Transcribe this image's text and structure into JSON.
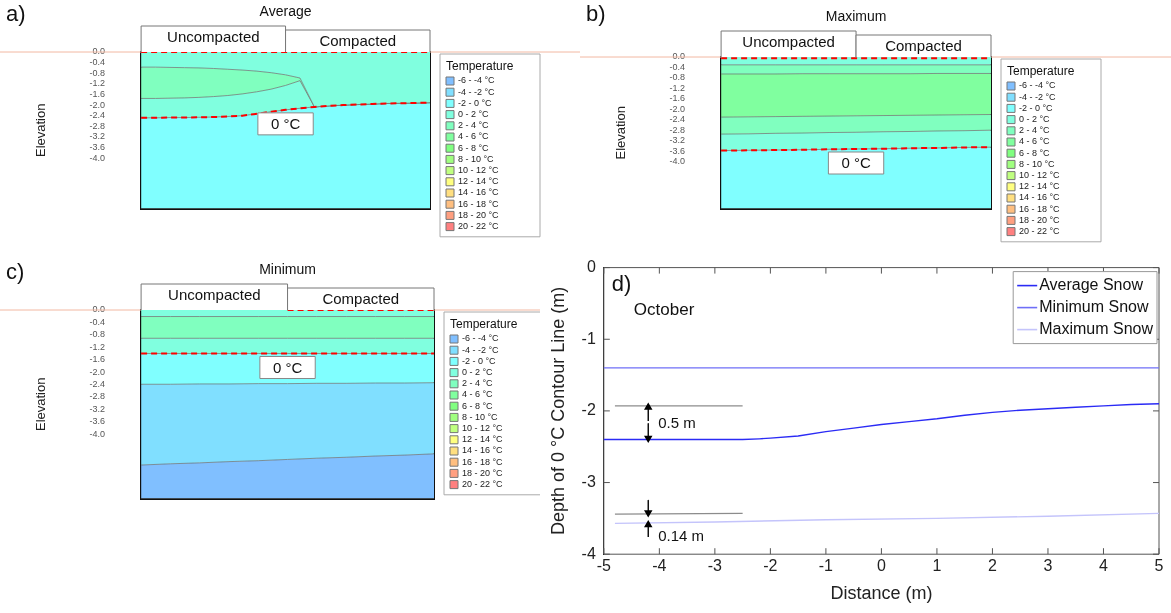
{
  "chart_data": [
    {
      "type": "area",
      "stacked": true,
      "title": "Average",
      "ylabel": "Elevation",
      "categories": [
        null,
        null,
        null,
        null,
        null,
        null,
        null,
        null,
        null,
        null,
        null,
        null,
        null,
        null,
        null,
        null,
        null,
        null,
        null,
        null,
        null
      ],
      "ylim": [
        -5.9,
        0
      ],
      "yticks": [
        {
          "value": 0,
          "label": "0.0"
        },
        {
          "value": -0.4,
          "label": "-0.4"
        },
        {
          "value": -0.8,
          "label": "-0.8"
        },
        {
          "value": -1.2,
          "label": "-1.2"
        },
        {
          "value": -1.6,
          "label": "-1.6"
        },
        {
          "value": -2,
          "label": "-2.0"
        },
        {
          "value": -2.4,
          "label": "-2.4"
        },
        {
          "value": -2.8,
          "label": "-2.8"
        },
        {
          "value": -3.2,
          "label": "-3.2"
        },
        {
          "value": -3.6,
          "label": "-3.6"
        },
        {
          "value": -4,
          "label": "-4.0"
        }
      ],
      "tick_labels": "y",
      "grid": false,
      "legend": "right",
      "legend_title": "Temperature",
      "annotations": [
        "a)",
        "Uncompacted",
        "Compacted"
      ],
      "ref_lines": [
        {
          "axis": "y",
          "value": 0,
          "color": "#f2b8a2"
        }
      ],
      "series": [
        {
          "color": "#80ffdf",
          "values": [
            -0.57,
            -0.57,
            -0.58,
            -0.59,
            -0.6,
            -0.62,
            -0.65,
            -0.68,
            -0.72,
            -0.78,
            -0.86,
            -0.98,
            -2.07,
            -2.03,
            -2.0,
            -1.98,
            -1.96,
            -1.94,
            -1.93,
            -1.92,
            -1.91
          ]
        },
        {
          "color": "#80ffbf",
          "values": [
            -1.18,
            -1.18,
            -1.16,
            -1.14,
            -1.11,
            -1.06,
            -0.99,
            -0.9,
            -0.78,
            -0.62,
            -0.4,
            -0.1,
            0,
            0,
            0,
            0,
            0,
            0,
            0,
            0,
            0
          ]
        },
        {
          "color": "#80ffdf",
          "values": [
            -0.73,
            -0.73,
            -0.73,
            -0.74,
            -0.75,
            -0.77,
            -0.79,
            -0.82,
            -0.83,
            -0.85,
            -0.92,
            -1.04,
            0,
            0,
            0,
            0,
            0,
            0,
            0,
            0,
            0
          ]
        },
        {
          "color": "#80ffff",
          "values": [
            -3.42,
            -3.42,
            -3.43,
            -3.43,
            -3.44,
            -3.45,
            -3.47,
            -3.5,
            -3.57,
            -3.65,
            -3.72,
            -3.78,
            -3.83,
            -3.87,
            -3.9,
            -3.92,
            -3.94,
            -3.96,
            -3.97,
            -3.98,
            -3.99
          ]
        },
        {
          "type": "line",
          "name": "0 °C",
          "color": "#ff0000",
          "line_style": "dashed",
          "values": [
            -2.48,
            -2.48,
            -2.47,
            -2.47,
            -2.46,
            -2.45,
            -2.43,
            -2.4,
            -2.33,
            -2.25,
            -2.18,
            -2.12,
            -2.07,
            -2.03,
            -2.0,
            -1.98,
            -1.96,
            -1.94,
            -1.93,
            -1.92,
            -1.91
          ]
        },
        {
          "type": "line",
          "color": "#ff0000",
          "line_style": "dashed",
          "values": [
            0,
            0,
            0,
            0,
            0,
            0,
            0,
            0,
            0,
            0,
            0,
            0,
            0,
            0,
            0,
            0,
            0,
            0,
            0,
            0,
            0
          ]
        },
        {
          "name": "-6 - -4 °C",
          "color": "#80bfff",
          "values": [
            null,
            null,
            null,
            null,
            null,
            null,
            null,
            null,
            null,
            null,
            null,
            null,
            null,
            null,
            null,
            null,
            null,
            null,
            null,
            null,
            null
          ]
        },
        {
          "name": "-4 - -2 °C",
          "color": "#80dfff",
          "values": [
            null,
            null,
            null,
            null,
            null,
            null,
            null,
            null,
            null,
            null,
            null,
            null,
            null,
            null,
            null,
            null,
            null,
            null,
            null,
            null,
            null
          ]
        },
        {
          "name": "-2 - 0 °C",
          "color": "#80ffff",
          "values": [
            null,
            null,
            null,
            null,
            null,
            null,
            null,
            null,
            null,
            null,
            null,
            null,
            null,
            null,
            null,
            null,
            null,
            null,
            null,
            null,
            null
          ]
        },
        {
          "name": "0 - 2 °C",
          "color": "#80ffdf",
          "values": [
            null,
            null,
            null,
            null,
            null,
            null,
            null,
            null,
            null,
            null,
            null,
            null,
            null,
            null,
            null,
            null,
            null,
            null,
            null,
            null,
            null
          ]
        },
        {
          "name": "2 - 4 °C",
          "color": "#80ffbf",
          "values": [
            null,
            null,
            null,
            null,
            null,
            null,
            null,
            null,
            null,
            null,
            null,
            null,
            null,
            null,
            null,
            null,
            null,
            null,
            null,
            null,
            null
          ]
        },
        {
          "name": "4 - 6 °C",
          "color": "#80ff9f",
          "values": [
            null,
            null,
            null,
            null,
            null,
            null,
            null,
            null,
            null,
            null,
            null,
            null,
            null,
            null,
            null,
            null,
            null,
            null,
            null,
            null,
            null
          ]
        },
        {
          "name": "6 - 8 °C",
          "color": "#80ff80",
          "values": [
            null,
            null,
            null,
            null,
            null,
            null,
            null,
            null,
            null,
            null,
            null,
            null,
            null,
            null,
            null,
            null,
            null,
            null,
            null,
            null,
            null
          ]
        },
        {
          "name": "8 - 10 °C",
          "color": "#a0ff80",
          "values": [
            null,
            null,
            null,
            null,
            null,
            null,
            null,
            null,
            null,
            null,
            null,
            null,
            null,
            null,
            null,
            null,
            null,
            null,
            null,
            null,
            null
          ]
        },
        {
          "name": "10 - 12 °C",
          "color": "#c0ff80",
          "values": [
            null,
            null,
            null,
            null,
            null,
            null,
            null,
            null,
            null,
            null,
            null,
            null,
            null,
            null,
            null,
            null,
            null,
            null,
            null,
            null,
            null
          ]
        },
        {
          "name": "12 - 14 °C",
          "color": "#ffff80",
          "values": [
            null,
            null,
            null,
            null,
            null,
            null,
            null,
            null,
            null,
            null,
            null,
            null,
            null,
            null,
            null,
            null,
            null,
            null,
            null,
            null,
            null
          ]
        },
        {
          "name": "14 - 16 °C",
          "color": "#ffdf80",
          "values": [
            null,
            null,
            null,
            null,
            null,
            null,
            null,
            null,
            null,
            null,
            null,
            null,
            null,
            null,
            null,
            null,
            null,
            null,
            null,
            null,
            null
          ]
        },
        {
          "name": "16 - 18 °C",
          "color": "#ffbf80",
          "values": [
            null,
            null,
            null,
            null,
            null,
            null,
            null,
            null,
            null,
            null,
            null,
            null,
            null,
            null,
            null,
            null,
            null,
            null,
            null,
            null,
            null
          ]
        },
        {
          "name": "18 - 20 °C",
          "color": "#ff9f80",
          "values": [
            null,
            null,
            null,
            null,
            null,
            null,
            null,
            null,
            null,
            null,
            null,
            null,
            null,
            null,
            null,
            null,
            null,
            null,
            null,
            null,
            null
          ]
        },
        {
          "name": "20 - 22 °C",
          "color": "#ff8080",
          "values": [
            null,
            null,
            null,
            null,
            null,
            null,
            null,
            null,
            null,
            null,
            null,
            null,
            null,
            null,
            null,
            null,
            null,
            null,
            null,
            null,
            null
          ]
        }
      ]
    },
    {
      "type": "area",
      "stacked": true,
      "title": "Maximum",
      "ylabel": "Elevation",
      "categories": [
        null,
        null,
        null,
        null,
        null,
        null,
        null,
        null,
        null,
        null,
        null
      ],
      "ylim": [
        -5.8,
        0
      ],
      "yticks": [
        {
          "value": 0,
          "label": "0.0"
        },
        {
          "value": -0.4,
          "label": "-0.4"
        },
        {
          "value": -0.8,
          "label": "-0.8"
        },
        {
          "value": -1.2,
          "label": "-1.2"
        },
        {
          "value": -1.6,
          "label": "-1.6"
        },
        {
          "value": -2,
          "label": "-2.0"
        },
        {
          "value": -2.4,
          "label": "-2.4"
        },
        {
          "value": -2.8,
          "label": "-2.8"
        },
        {
          "value": -3.2,
          "label": "-3.2"
        },
        {
          "value": -3.6,
          "label": "-3.6"
        },
        {
          "value": -4,
          "label": "-4.0"
        }
      ],
      "tick_labels": "y",
      "grid": false,
      "legend": "right",
      "legend_title": "Temperature",
      "annotations": [
        "b)",
        "Uncompacted",
        "Compacted"
      ],
      "ref_lines": [
        {
          "axis": "y",
          "value": 0,
          "color": "#f2b8a2"
        }
      ],
      "series": [
        {
          "color": "#80ffdf",
          "values": [
            -0.3,
            -0.3,
            -0.3,
            -0.3,
            -0.3,
            -0.3,
            -0.3,
            -0.3,
            -0.3,
            -0.3,
            -0.3
          ]
        },
        {
          "color": "#80ffbf",
          "values": [
            -0.35,
            -0.35,
            -0.35,
            -0.34,
            -0.34,
            -0.34,
            -0.34,
            -0.34,
            -0.33,
            -0.33,
            -0.33
          ]
        },
        {
          "color": "#80ff9f",
          "values": [
            -1.65,
            -1.64,
            -1.63,
            -1.63,
            -1.62,
            -1.61,
            -1.6,
            -1.59,
            -1.59,
            -1.58,
            -1.57
          ]
        },
        {
          "color": "#80ffbf",
          "values": [
            -0.65,
            -0.65,
            -0.64,
            -0.64,
            -0.63,
            -0.63,
            -0.62,
            -0.62,
            -0.61,
            -0.61,
            -0.6
          ]
        },
        {
          "color": "#80ffdf",
          "values": [
            -0.63,
            -0.63,
            -0.64,
            -0.64,
            -0.64,
            -0.64,
            -0.65,
            -0.64,
            -0.65,
            -0.64,
            -0.65
          ]
        },
        {
          "color": "#80ffff",
          "values": [
            -2.22,
            -2.23,
            -2.24,
            -2.25,
            -2.27,
            -2.28,
            -2.29,
            -2.31,
            -2.32,
            -2.34,
            -2.35
          ]
        },
        {
          "type": "line",
          "name": "0 °C",
          "color": "#ff0000",
          "line_style": "dashed",
          "values": [
            -3.58,
            -3.57,
            -3.56,
            -3.55,
            -3.53,
            -3.52,
            -3.51,
            -3.49,
            -3.48,
            -3.46,
            -3.45
          ]
        },
        {
          "type": "line",
          "color": "#ff0000",
          "line_style": "dashed",
          "values": [
            -0.05,
            -0.05,
            -0.05,
            -0.05,
            -0.05,
            -0.05,
            -0.05,
            -0.05,
            -0.05,
            -0.05,
            -0.05
          ]
        },
        {
          "name": "-6 - -4 °C",
          "color": "#80bfff",
          "values": [
            null,
            null,
            null,
            null,
            null,
            null,
            null,
            null,
            null,
            null,
            null
          ]
        },
        {
          "name": "-4 - -2 °C",
          "color": "#80dfff",
          "values": [
            null,
            null,
            null,
            null,
            null,
            null,
            null,
            null,
            null,
            null,
            null
          ]
        },
        {
          "name": "-2 - 0 °C",
          "color": "#80ffff",
          "values": [
            null,
            null,
            null,
            null,
            null,
            null,
            null,
            null,
            null,
            null,
            null
          ]
        },
        {
          "name": "0 - 2 °C",
          "color": "#80ffdf",
          "values": [
            null,
            null,
            null,
            null,
            null,
            null,
            null,
            null,
            null,
            null,
            null
          ]
        },
        {
          "name": "2 - 4 °C",
          "color": "#80ffbf",
          "values": [
            null,
            null,
            null,
            null,
            null,
            null,
            null,
            null,
            null,
            null,
            null
          ]
        },
        {
          "name": "4 - 6 °C",
          "color": "#80ff9f",
          "values": [
            null,
            null,
            null,
            null,
            null,
            null,
            null,
            null,
            null,
            null,
            null
          ]
        },
        {
          "name": "6 - 8 °C",
          "color": "#80ff80",
          "values": [
            null,
            null,
            null,
            null,
            null,
            null,
            null,
            null,
            null,
            null,
            null
          ]
        },
        {
          "name": "8 - 10 °C",
          "color": "#a0ff80",
          "values": [
            null,
            null,
            null,
            null,
            null,
            null,
            null,
            null,
            null,
            null,
            null
          ]
        },
        {
          "name": "10 - 12 °C",
          "color": "#c0ff80",
          "values": [
            null,
            null,
            null,
            null,
            null,
            null,
            null,
            null,
            null,
            null,
            null
          ]
        },
        {
          "name": "12 - 14 °C",
          "color": "#ffff80",
          "values": [
            null,
            null,
            null,
            null,
            null,
            null,
            null,
            null,
            null,
            null,
            null
          ]
        },
        {
          "name": "14 - 16 °C",
          "color": "#ffdf80",
          "values": [
            null,
            null,
            null,
            null,
            null,
            null,
            null,
            null,
            null,
            null,
            null
          ]
        },
        {
          "name": "16 - 18 °C",
          "color": "#ffbf80",
          "values": [
            null,
            null,
            null,
            null,
            null,
            null,
            null,
            null,
            null,
            null,
            null
          ]
        },
        {
          "name": "18 - 20 °C",
          "color": "#ff9f80",
          "values": [
            null,
            null,
            null,
            null,
            null,
            null,
            null,
            null,
            null,
            null,
            null
          ]
        },
        {
          "name": "20 - 22 °C",
          "color": "#ff8080",
          "values": [
            null,
            null,
            null,
            null,
            null,
            null,
            null,
            null,
            null,
            null,
            null
          ]
        }
      ]
    },
    {
      "type": "area",
      "stacked": true,
      "title": "Minimum",
      "ylabel": "Elevation",
      "categories": [
        null,
        null,
        null,
        null,
        null,
        null,
        null,
        null,
        null,
        null,
        null
      ],
      "ylim": [
        -6.07,
        0
      ],
      "yticks": [
        {
          "value": 0,
          "label": "0.0"
        },
        {
          "value": -0.4,
          "label": "-0.4"
        },
        {
          "value": -0.8,
          "label": "-0.8"
        },
        {
          "value": -1.2,
          "label": "-1.2"
        },
        {
          "value": -1.6,
          "label": "-1.6"
        },
        {
          "value": -2,
          "label": "-2.0"
        },
        {
          "value": -2.4,
          "label": "-2.4"
        },
        {
          "value": -2.8,
          "label": "-2.8"
        },
        {
          "value": -3.2,
          "label": "-3.2"
        },
        {
          "value": -3.6,
          "label": "-3.6"
        },
        {
          "value": -4,
          "label": "-4.0"
        }
      ],
      "tick_labels": "y",
      "grid": false,
      "legend": "right",
      "legend_title": "Temperature",
      "annotations": [
        "c)",
        "Uncompacted",
        "Compacted"
      ],
      "ref_lines": [
        {
          "axis": "y",
          "value": 0,
          "color": "#f2b8a2"
        }
      ],
      "series": [
        {
          "color": "#80ffdf",
          "values": [
            -0.21,
            -0.21,
            -0.21,
            -0.21,
            -0.21,
            -0.21,
            -0.21,
            -0.21,
            -0.21,
            -0.21,
            -0.21
          ]
        },
        {
          "color": "#80ffbf",
          "values": [
            -0.7,
            -0.7,
            -0.7,
            -0.7,
            -0.7,
            -0.7,
            -0.7,
            -0.7,
            -0.7,
            -0.7,
            -0.7
          ]
        },
        {
          "color": "#80ffdf",
          "values": [
            -0.49,
            -0.49,
            -0.49,
            -0.49,
            -0.49,
            -0.49,
            -0.49,
            -0.49,
            -0.49,
            -0.49,
            -0.49
          ]
        },
        {
          "color": "#80ffff",
          "values": [
            -0.99,
            -0.99,
            -0.98,
            -0.98,
            -0.97,
            -0.97,
            -0.96,
            -0.96,
            -0.95,
            -0.95,
            -0.94
          ]
        },
        {
          "color": "#80dfff",
          "values": [
            -2.6,
            -2.56,
            -2.54,
            -2.5,
            -2.48,
            -2.44,
            -2.41,
            -2.38,
            -2.35,
            -2.32,
            -2.29
          ]
        },
        {
          "color": "#80bfff",
          "values": [
            -1.08,
            -1.12,
            -1.15,
            -1.19,
            -1.22,
            -1.26,
            -1.3,
            -1.33,
            -1.37,
            -1.4,
            -1.44
          ]
        },
        {
          "type": "line",
          "name": "0 °C",
          "color": "#ff0000",
          "line_style": "dashed",
          "values": [
            -1.4,
            -1.4,
            -1.4,
            -1.4,
            -1.4,
            -1.4,
            -1.4,
            -1.4,
            -1.4,
            -1.4,
            -1.4
          ]
        },
        {
          "type": "line",
          "color": "#ff0000",
          "line_style": "dashed",
          "values": [
            null,
            null,
            null,
            null,
            null,
            0,
            0,
            0,
            0,
            0,
            0
          ]
        },
        {
          "name": "-6 - -4 °C",
          "color": "#80bfff",
          "values": [
            null,
            null,
            null,
            null,
            null,
            null,
            null,
            null,
            null,
            null,
            null
          ]
        },
        {
          "name": "-4 - -2 °C",
          "color": "#80dfff",
          "values": [
            null,
            null,
            null,
            null,
            null,
            null,
            null,
            null,
            null,
            null,
            null
          ]
        },
        {
          "name": "-2 - 0 °C",
          "color": "#80ffff",
          "values": [
            null,
            null,
            null,
            null,
            null,
            null,
            null,
            null,
            null,
            null,
            null
          ]
        },
        {
          "name": "0 - 2 °C",
          "color": "#80ffdf",
          "values": [
            null,
            null,
            null,
            null,
            null,
            null,
            null,
            null,
            null,
            null,
            null
          ]
        },
        {
          "name": "2 - 4 °C",
          "color": "#80ffbf",
          "values": [
            null,
            null,
            null,
            null,
            null,
            null,
            null,
            null,
            null,
            null,
            null
          ]
        },
        {
          "name": "4 - 6 °C",
          "color": "#80ff9f",
          "values": [
            null,
            null,
            null,
            null,
            null,
            null,
            null,
            null,
            null,
            null,
            null
          ]
        },
        {
          "name": "6 - 8 °C",
          "color": "#80ff80",
          "values": [
            null,
            null,
            null,
            null,
            null,
            null,
            null,
            null,
            null,
            null,
            null
          ]
        },
        {
          "name": "8 - 10 °C",
          "color": "#a0ff80",
          "values": [
            null,
            null,
            null,
            null,
            null,
            null,
            null,
            null,
            null,
            null,
            null
          ]
        },
        {
          "name": "10 - 12 °C",
          "color": "#c0ff80",
          "values": [
            null,
            null,
            null,
            null,
            null,
            null,
            null,
            null,
            null,
            null,
            null
          ]
        },
        {
          "name": "12 - 14 °C",
          "color": "#ffff80",
          "values": [
            null,
            null,
            null,
            null,
            null,
            null,
            null,
            null,
            null,
            null,
            null
          ]
        },
        {
          "name": "14 - 16 °C",
          "color": "#ffdf80",
          "values": [
            null,
            null,
            null,
            null,
            null,
            null,
            null,
            null,
            null,
            null,
            null
          ]
        },
        {
          "name": "16 - 18 °C",
          "color": "#ffbf80",
          "values": [
            null,
            null,
            null,
            null,
            null,
            null,
            null,
            null,
            null,
            null,
            null
          ]
        },
        {
          "name": "18 - 20 °C",
          "color": "#ff9f80",
          "values": [
            null,
            null,
            null,
            null,
            null,
            null,
            null,
            null,
            null,
            null,
            null
          ]
        },
        {
          "name": "20 - 22 °C",
          "color": "#ff8080",
          "values": [
            null,
            null,
            null,
            null,
            null,
            null,
            null,
            null,
            null,
            null,
            null
          ]
        }
      ]
    },
    {
      "type": "line",
      "xlabel": "Distance (m)",
      "ylabel": "Depth of 0 °C Contour Line (m)",
      "xlim": [
        -5,
        5
      ],
      "xticks": [
        -5,
        -4,
        -3,
        -2,
        -1,
        0,
        1,
        2,
        3,
        4,
        5
      ],
      "ylim": [
        -4,
        0
      ],
      "yticks": [
        -4,
        -3,
        -2,
        -1,
        0
      ],
      "grid": false,
      "legend": "top right",
      "annotations": [
        "d)",
        "October",
        {
          "text": "0.5 m",
          "x": -4.2,
          "y": -2.18
        },
        {
          "text": "0.14 m",
          "x": -4.2,
          "y": -3.76
        }
      ],
      "series": [
        {
          "name": "Average Snow",
          "color": "#2b2bf5",
          "x": [
            -5,
            -4,
            -3,
            -2.5,
            -2.2,
            -2,
            -1.5,
            -1,
            -0.5,
            0,
            0.5,
            1,
            1.5,
            2,
            2.5,
            3,
            3.5,
            4,
            4.5,
            5
          ],
          "values": [
            -2.4,
            -2.4,
            -2.4,
            -2.4,
            -2.39,
            -2.38,
            -2.35,
            -2.29,
            -2.24,
            -2.19,
            -2.15,
            -2.11,
            -2.06,
            -2.02,
            -1.99,
            -1.97,
            -1.95,
            -1.93,
            -1.91,
            -1.9
          ]
        },
        {
          "name": "Minimum Snow",
          "color": "#6f6ff7",
          "x": [
            -5,
            5
          ],
          "values": [
            -1.4,
            -1.4
          ]
        },
        {
          "name": "Maximum Snow",
          "color": "#c4c4fb",
          "x": [
            -4.8,
            -3,
            -1,
            1,
            3,
            5
          ],
          "values": [
            -3.57,
            -3.55,
            -3.52,
            -3.5,
            -3.47,
            -3.43
          ]
        },
        {
          "color": "#8c8c8c",
          "x": [
            -4.8,
            -2.5
          ],
          "values": [
            -1.93,
            -1.93
          ]
        },
        {
          "color": "#8c8c8c",
          "x": [
            -4.8,
            -2.5
          ],
          "values": [
            -3.44,
            -3.43
          ]
        },
        {
          "color": "#000000",
          "marker": "triangle",
          "x": [
            -4.2,
            -4.2
          ],
          "values": [
            -2.14,
            -1.95
          ]
        },
        {
          "color": "#000000",
          "marker": "triangle",
          "x": [
            -4.2,
            -4.2
          ],
          "values": [
            -2.18,
            -2.38
          ]
        },
        {
          "color": "#000000",
          "marker": "triangle",
          "x": [
            -4.2,
            -4.2
          ],
          "values": [
            -3.25,
            -3.42
          ]
        },
        {
          "color": "#000000",
          "marker": "triangle",
          "x": [
            -4.2,
            -4.2
          ],
          "values": [
            -3.76,
            -3.59
          ]
        }
      ]
    }
  ]
}
